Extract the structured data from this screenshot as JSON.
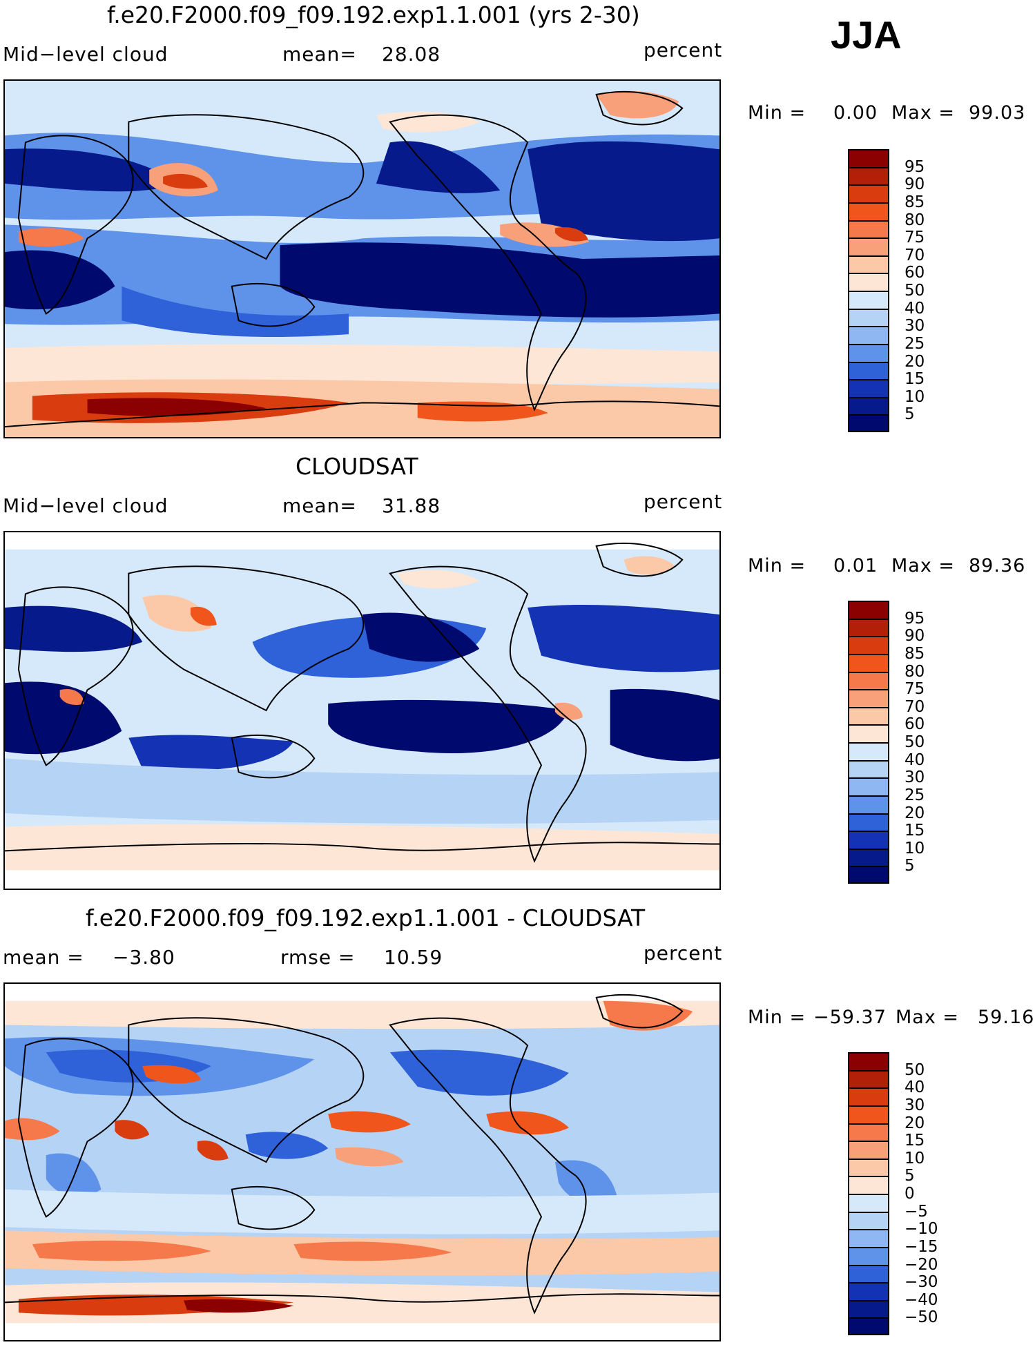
{
  "season": "JJA",
  "units_label": "percent",
  "colors": {
    "ocean_light": "#d6e9fa",
    "land_outline": "#000000"
  },
  "panels": [
    {
      "title": "f.e20.F2000.f09_f09.192.exp1.1.001 (yrs 2-30)",
      "variable": "Mid−level cloud",
      "stat_label": "mean=",
      "stat_value": "28.08",
      "units": "percent",
      "min_label": "Min =",
      "min_value": "0.00",
      "max_label": "Max =",
      "max_value": "99.03",
      "colorbar": {
        "labels": [
          "95",
          "90",
          "85",
          "80",
          "75",
          "70",
          "60",
          "50",
          "40",
          "30",
          "25",
          "20",
          "15",
          "10",
          "5"
        ],
        "colors": [
          "#8b0000",
          "#b2200a",
          "#d93c0e",
          "#f0561c",
          "#f5794a",
          "#f8a07a",
          "#fbc8a8",
          "#fde6d6",
          "#d6e9fa",
          "#b5d3f5",
          "#8fb8f2",
          "#5f93ea",
          "#2f62d9",
          "#1432b4",
          "#061a8c",
          "#000a6e"
        ]
      }
    },
    {
      "title": "CLOUDSAT",
      "variable": "Mid−level cloud",
      "stat_label": "mean=",
      "stat_value": "31.88",
      "units": "percent",
      "min_label": "Min =",
      "min_value": "0.01",
      "max_label": "Max =",
      "max_value": "89.36",
      "colorbar": {
        "labels": [
          "95",
          "90",
          "85",
          "80",
          "75",
          "70",
          "60",
          "50",
          "40",
          "30",
          "25",
          "20",
          "15",
          "10",
          "5"
        ],
        "colors": [
          "#8b0000",
          "#b2200a",
          "#d93c0e",
          "#f0561c",
          "#f5794a",
          "#f8a07a",
          "#fbc8a8",
          "#fde6d6",
          "#d6e9fa",
          "#b5d3f5",
          "#8fb8f2",
          "#5f93ea",
          "#2f62d9",
          "#1432b4",
          "#061a8c",
          "#000a6e"
        ]
      }
    },
    {
      "title": "f.e20.F2000.f09_f09.192.exp1.1.001 - CLOUDSAT",
      "variable": "mean =",
      "stat_label": "rmse =",
      "stat_value": "10.59",
      "mean_value": "−3.80",
      "units": "percent",
      "min_label": "Min =",
      "min_value": "−59.37",
      "max_label": "Max =",
      "max_value": "59.16",
      "colorbar": {
        "labels": [
          "50",
          "40",
          "30",
          "20",
          "15",
          "10",
          "5",
          "0",
          "−5",
          "−10",
          "−15",
          "−20",
          "−30",
          "−40",
          "−50"
        ],
        "colors": [
          "#8b0000",
          "#b2200a",
          "#d93c0e",
          "#f0561c",
          "#f5794a",
          "#f8a07a",
          "#fbc8a8",
          "#fde6d6",
          "#d6e9fa",
          "#b5d3f5",
          "#8fb8f2",
          "#5f93ea",
          "#2f62d9",
          "#1432b4",
          "#061a8c",
          "#000a6e"
        ]
      }
    }
  ]
}
